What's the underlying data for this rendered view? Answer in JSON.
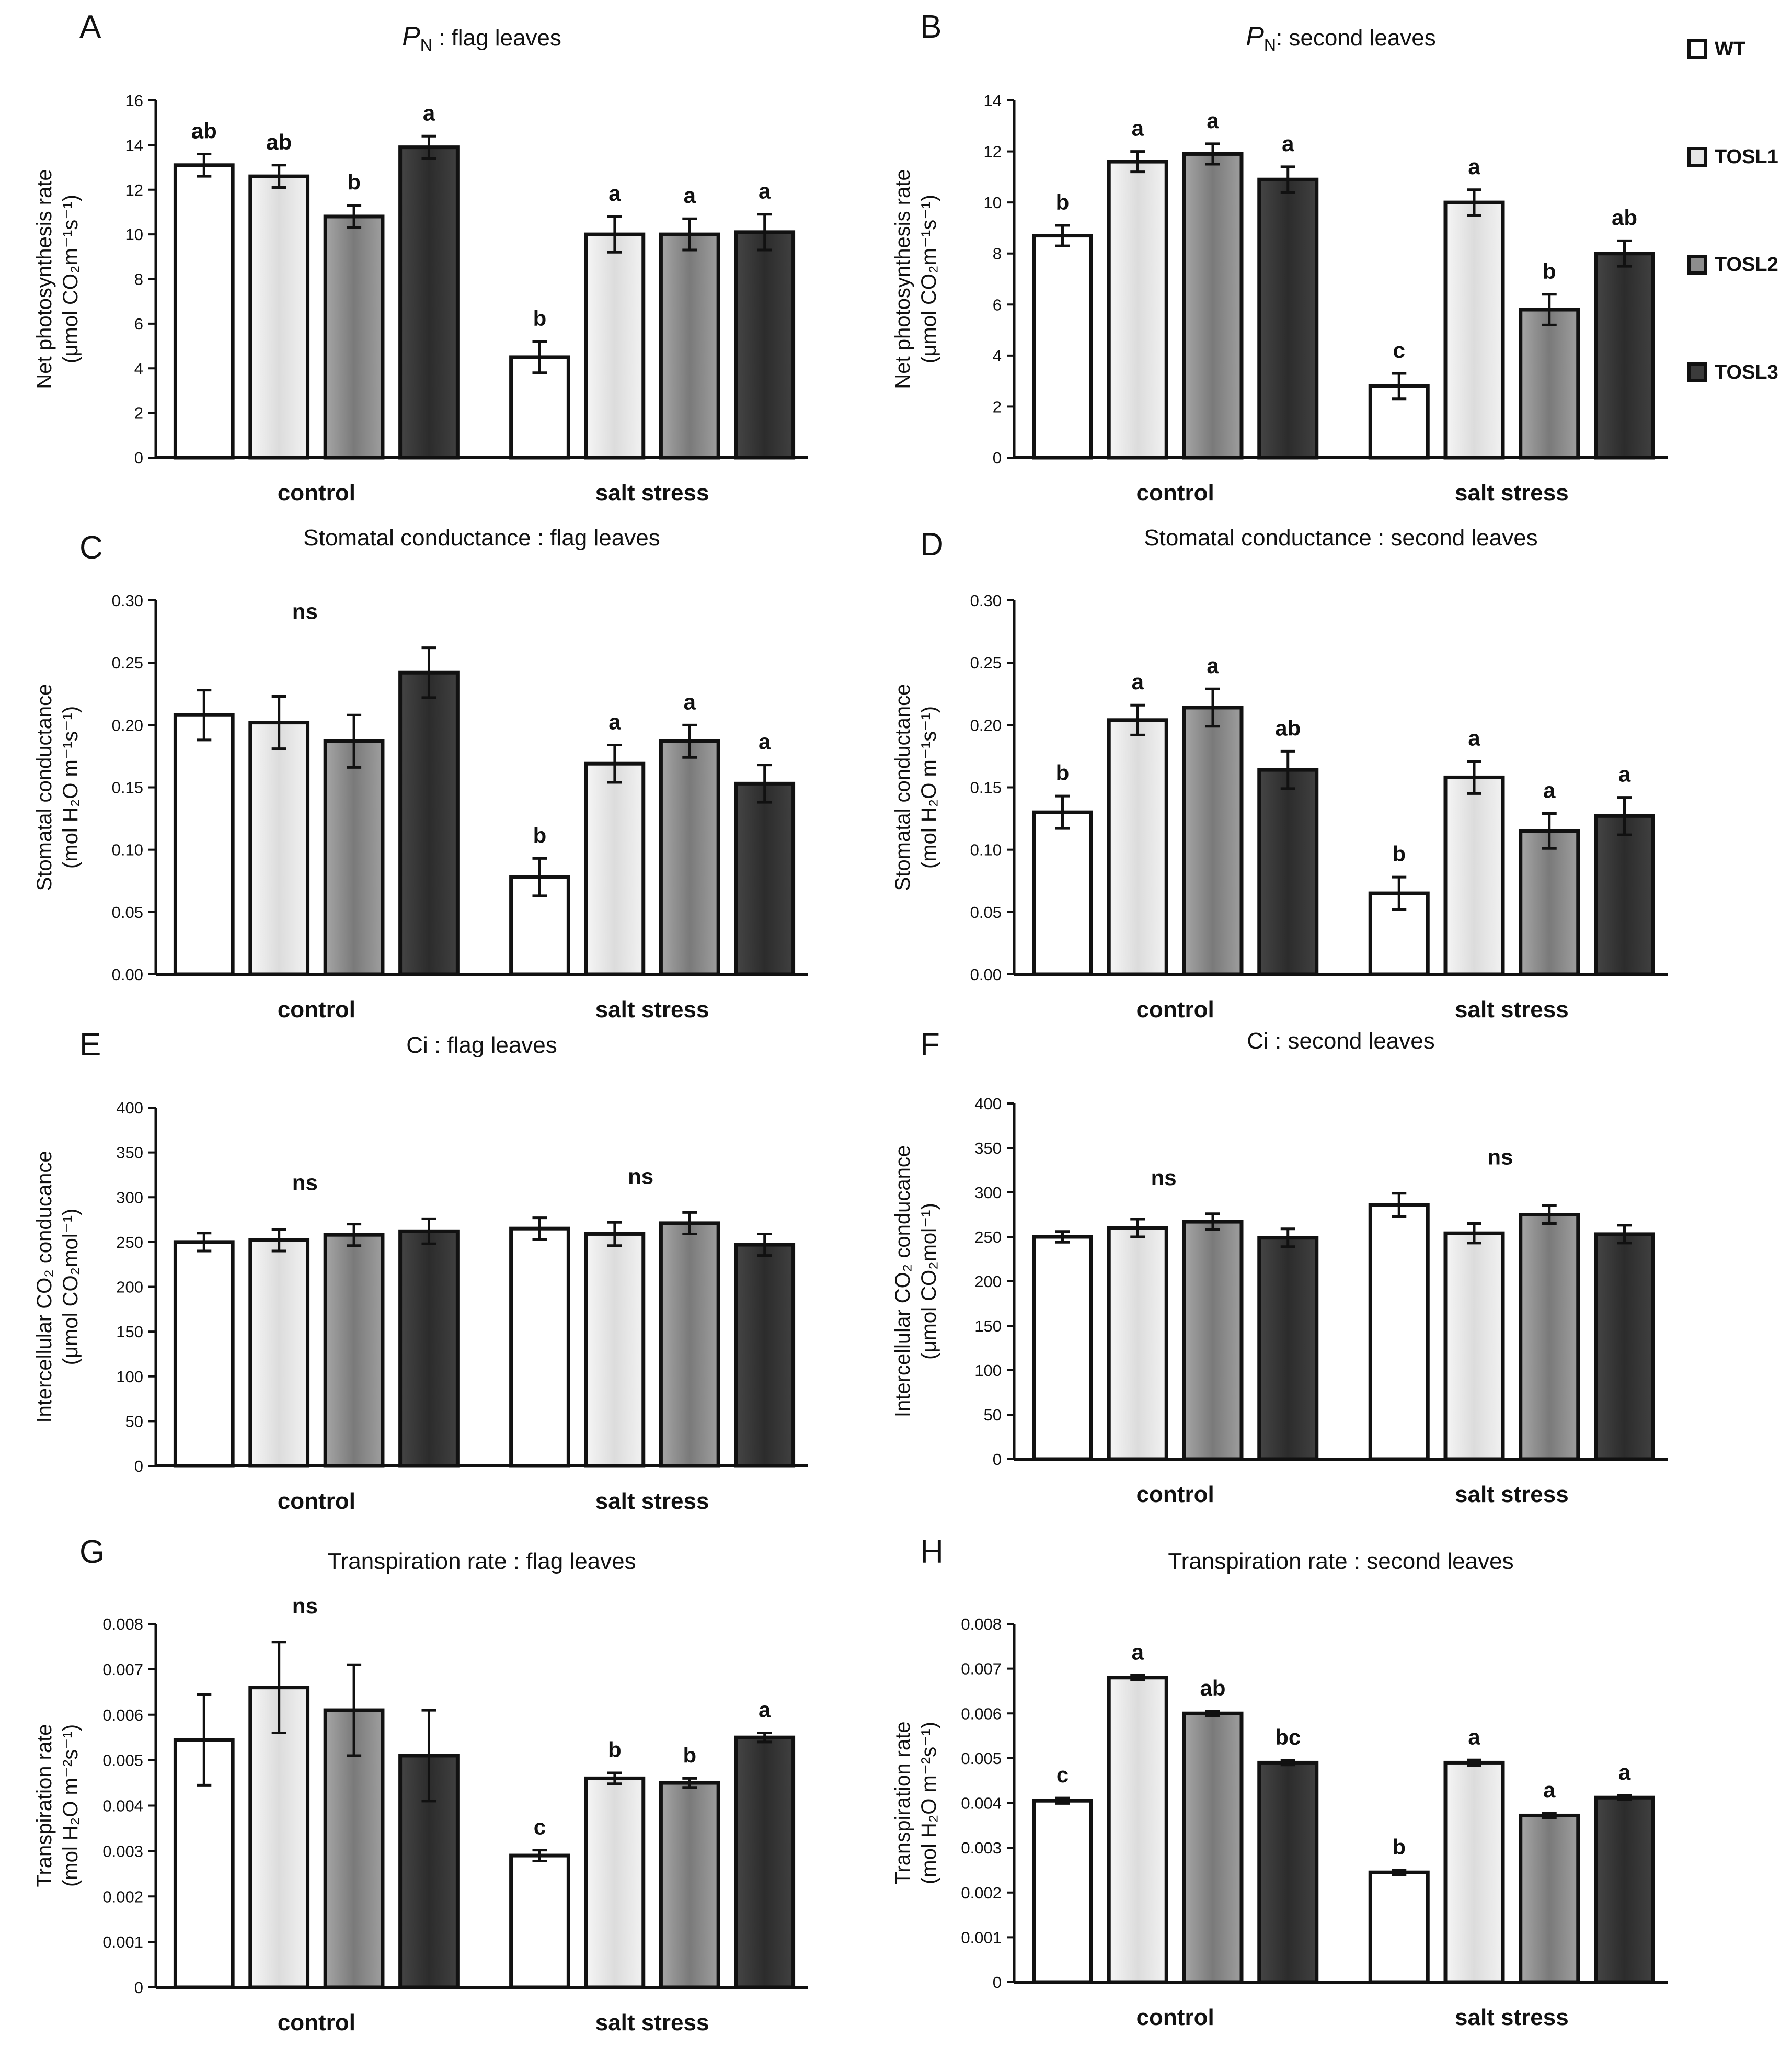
{
  "legend": [
    {
      "name": "WT",
      "color": "#ffffff"
    },
    {
      "name": "TOSL1",
      "color": "#e9e9e9"
    },
    {
      "name": "TOSL2",
      "color": "#8d8d8d"
    },
    {
      "name": "TOSL3",
      "color": "#3b3b3b"
    }
  ],
  "chart_data": [
    {
      "panel": "A",
      "type": "bar",
      "title_italic": "P",
      "title_sub": "N",
      "title": " : flag leaves",
      "ylabel_lines": [
        "Net photosynthesis rate",
        "(μmol CO₂m⁻¹s⁻¹)"
      ],
      "categories": [
        "control",
        "salt stress"
      ],
      "series_names": [
        "WT",
        "TOSL1",
        "TOSL2",
        "TOSL3"
      ],
      "values": [
        [
          13.1,
          12.6,
          10.8,
          13.9
        ],
        [
          4.5,
          10.0,
          10.0,
          10.1
        ]
      ],
      "errors": [
        [
          0.5,
          0.5,
          0.5,
          0.5
        ],
        [
          0.7,
          0.8,
          0.7,
          0.8
        ]
      ],
      "letters": [
        [
          "ab",
          "ab",
          "b",
          "a"
        ],
        [
          "b",
          "a",
          "a",
          "a"
        ]
      ],
      "group_notes": [
        "",
        ""
      ],
      "ylim": [
        0,
        16
      ],
      "yticks": [
        "0",
        "2",
        "4",
        "6",
        "8",
        "10",
        "12",
        "14",
        "16"
      ]
    },
    {
      "panel": "B",
      "type": "bar",
      "title_italic": "P",
      "title_sub": "N",
      "title": ": second leaves",
      "ylabel_lines": [
        "Net photosynthesis rate",
        "(μmol CO₂m⁻¹s⁻¹)"
      ],
      "categories": [
        "control",
        "salt stress"
      ],
      "series_names": [
        "WT",
        "TOSL1",
        "TOSL2",
        "TOSL3"
      ],
      "values": [
        [
          8.7,
          11.6,
          11.9,
          10.9
        ],
        [
          2.8,
          10.0,
          5.8,
          8.0
        ]
      ],
      "errors": [
        [
          0.4,
          0.4,
          0.4,
          0.5
        ],
        [
          0.5,
          0.5,
          0.6,
          0.5
        ]
      ],
      "letters": [
        [
          "b",
          "a",
          "a",
          "a"
        ],
        [
          "c",
          "a",
          "b",
          "ab"
        ]
      ],
      "group_notes": [
        "",
        ""
      ],
      "ylim": [
        0,
        14
      ],
      "yticks": [
        "0",
        "2",
        "4",
        "6",
        "8",
        "10",
        "12",
        "14"
      ]
    },
    {
      "panel": "C",
      "type": "bar",
      "title_italic": "",
      "title_sub": "",
      "title": "Stomatal conductance : flag leaves",
      "ylabel_lines": [
        "Stomatal conductance",
        "(mol H₂O m⁻¹s⁻¹)"
      ],
      "categories": [
        "control",
        "salt stress"
      ],
      "series_names": [
        "WT",
        "TOSL1",
        "TOSL2",
        "TOSL3"
      ],
      "values": [
        [
          0.208,
          0.202,
          0.187,
          0.242
        ],
        [
          0.078,
          0.169,
          0.187,
          0.153
        ]
      ],
      "errors": [
        [
          0.02,
          0.021,
          0.021,
          0.02
        ],
        [
          0.015,
          0.015,
          0.013,
          0.015
        ]
      ],
      "letters": [
        [
          "",
          "",
          "",
          ""
        ],
        [
          "b",
          "a",
          "a",
          "a"
        ]
      ],
      "group_notes": [
        "ns",
        ""
      ],
      "ylim": [
        0,
        0.3
      ],
      "yticks": [
        "0.00",
        "0.05",
        "0.10",
        "0.15",
        "0.20",
        "0.25",
        "0.30"
      ]
    },
    {
      "panel": "D",
      "type": "bar",
      "title_italic": "",
      "title_sub": "",
      "title": "Stomatal conductance : second leaves",
      "ylabel_lines": [
        "Stomatal conductance",
        "(mol H₂O m⁻¹s⁻¹)"
      ],
      "categories": [
        "control",
        "salt stress"
      ],
      "series_names": [
        "WT",
        "TOSL1",
        "TOSL2",
        "TOSL3"
      ],
      "values": [
        [
          0.13,
          0.204,
          0.214,
          0.164
        ],
        [
          0.065,
          0.158,
          0.115,
          0.127
        ]
      ],
      "errors": [
        [
          0.013,
          0.012,
          0.015,
          0.015
        ],
        [
          0.013,
          0.013,
          0.014,
          0.015
        ]
      ],
      "letters": [
        [
          "b",
          "a",
          "a",
          "ab"
        ],
        [
          "b",
          "a",
          "a",
          "a"
        ]
      ],
      "group_notes": [
        "",
        ""
      ],
      "ylim": [
        0,
        0.3
      ],
      "yticks": [
        "0.00",
        "0.05",
        "0.10",
        "0.15",
        "0.20",
        "0.25",
        "0.30"
      ]
    },
    {
      "panel": "E",
      "type": "bar",
      "title_italic": "",
      "title_sub": "",
      "title": "Ci : flag leaves",
      "ylabel_lines": [
        "Intercellular CO₂ conducance",
        "(μmol CO₂mol⁻¹)"
      ],
      "categories": [
        "control",
        "salt stress"
      ],
      "series_names": [
        "WT",
        "TOSL1",
        "TOSL2",
        "TOSL3"
      ],
      "values": [
        [
          250,
          252,
          258,
          262
        ],
        [
          265,
          259,
          271,
          247
        ]
      ],
      "errors": [
        [
          10,
          12,
          12,
          14
        ],
        [
          12,
          13,
          12,
          12
        ]
      ],
      "letters": [
        [
          "",
          "",
          "",
          ""
        ],
        [
          "",
          "",
          "",
          ""
        ]
      ],
      "group_notes": [
        "ns",
        "ns"
      ],
      "ylim": [
        0,
        400
      ],
      "yticks": [
        "0",
        "50",
        "100",
        "150",
        "200",
        "250",
        "300",
        "350",
        "400"
      ]
    },
    {
      "panel": "F",
      "type": "bar",
      "title_italic": "",
      "title_sub": "",
      "title": "Ci : second leaves",
      "ylabel_lines": [
        "Intercellular CO₂ conducance",
        "(μmol CO₂mol⁻¹)"
      ],
      "categories": [
        "control",
        "salt stress"
      ],
      "series_names": [
        "WT",
        "TOSL1",
        "TOSL2",
        "TOSL3"
      ],
      "values": [
        [
          250,
          260,
          267,
          249
        ],
        [
          286,
          254,
          275,
          253
        ]
      ],
      "errors": [
        [
          6,
          10,
          9,
          10
        ],
        [
          13,
          11,
          10,
          10
        ]
      ],
      "letters": [
        [
          "",
          "",
          "",
          ""
        ],
        [
          "",
          "",
          "",
          ""
        ]
      ],
      "group_notes": [
        "ns",
        "ns"
      ],
      "ylim": [
        0,
        400
      ],
      "yticks": [
        "0",
        "50",
        "100",
        "150",
        "200",
        "250",
        "300",
        "350",
        "400"
      ]
    },
    {
      "panel": "G",
      "type": "bar",
      "title_italic": "",
      "title_sub": "",
      "title": "Transpiration rate : flag leaves",
      "ylabel_lines": [
        "Transpiration rate",
        "(mol H₂O m⁻²s⁻¹)"
      ],
      "categories": [
        "control",
        "salt stress"
      ],
      "series_names": [
        "WT",
        "TOSL1",
        "TOSL2",
        "TOSL3"
      ],
      "values": [
        [
          0.00545,
          0.0066,
          0.0061,
          0.0051
        ],
        [
          0.0029,
          0.0046,
          0.0045,
          0.0055
        ]
      ],
      "errors": [
        [
          0.001,
          0.001,
          0.001,
          0.001
        ],
        [
          0.00012,
          0.00012,
          0.0001,
          0.0001
        ]
      ],
      "letters": [
        [
          "",
          "",
          "",
          ""
        ],
        [
          "c",
          "b",
          "b",
          "a"
        ]
      ],
      "group_notes": [
        "ns",
        ""
      ],
      "ylim": [
        0,
        0.008
      ],
      "yticks": [
        "0",
        "0.001",
        "0.002",
        "0.003",
        "0.004",
        "0.005",
        "0.006",
        "0.007",
        "0.008"
      ]
    },
    {
      "panel": "H",
      "type": "bar",
      "title_italic": "",
      "title_sub": "",
      "title": "Transpiration rate : second leaves",
      "ylabel_lines": [
        "Transpiration rate",
        "(mol H₂O m⁻²s⁻¹)"
      ],
      "categories": [
        "control",
        "salt stress"
      ],
      "series_names": [
        "WT",
        "TOSL1",
        "TOSL2",
        "TOSL3"
      ],
      "values": [
        [
          0.00405,
          0.0068,
          0.006,
          0.0049
        ],
        [
          0.00245,
          0.0049,
          0.00372,
          0.00412
        ]
      ],
      "errors": [
        [
          6e-05,
          5e-05,
          5e-05,
          5e-05
        ],
        [
          5e-05,
          6e-05,
          5e-05,
          5e-05
        ]
      ],
      "letters": [
        [
          "c",
          "a",
          "ab",
          "bc"
        ],
        [
          "b",
          "a",
          "a",
          "a"
        ]
      ],
      "group_notes": [
        "",
        ""
      ],
      "ylim": [
        0,
        0.008
      ],
      "yticks": [
        "0",
        "0.001",
        "0.002",
        "0.003",
        "0.004",
        "0.005",
        "0.006",
        "0.007",
        "0.008"
      ]
    }
  ]
}
